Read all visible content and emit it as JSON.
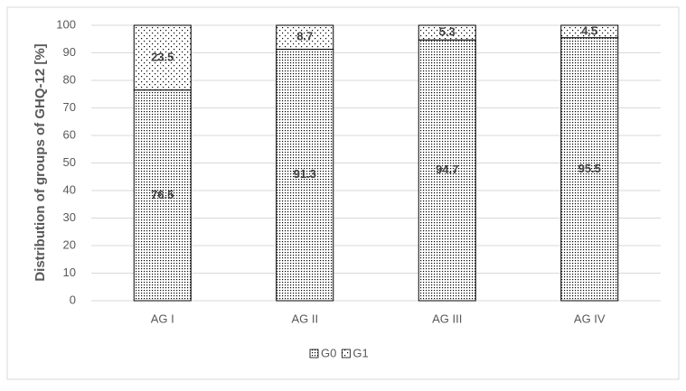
{
  "chart_data": {
    "type": "stacked_bar",
    "y_axis_label": "Distribution of groups of GHQ-12 [%]",
    "categories": [
      "AG I",
      "AG II",
      "AG III",
      "AG IV"
    ],
    "series": [
      {
        "name": "G0",
        "color": "#000000",
        "pattern": "dense",
        "values": [
          76.5,
          91.3,
          94.7,
          95.5
        ]
      },
      {
        "name": "G1",
        "color": "#000000",
        "pattern": "sparse",
        "values": [
          23.5,
          8.7,
          5.3,
          4.5
        ]
      }
    ],
    "ylim": [
      0,
      100
    ],
    "yticks": [
      0,
      10,
      20,
      30,
      40,
      50,
      60,
      70,
      80,
      90,
      100
    ],
    "grid": true,
    "legend": "bottom"
  }
}
